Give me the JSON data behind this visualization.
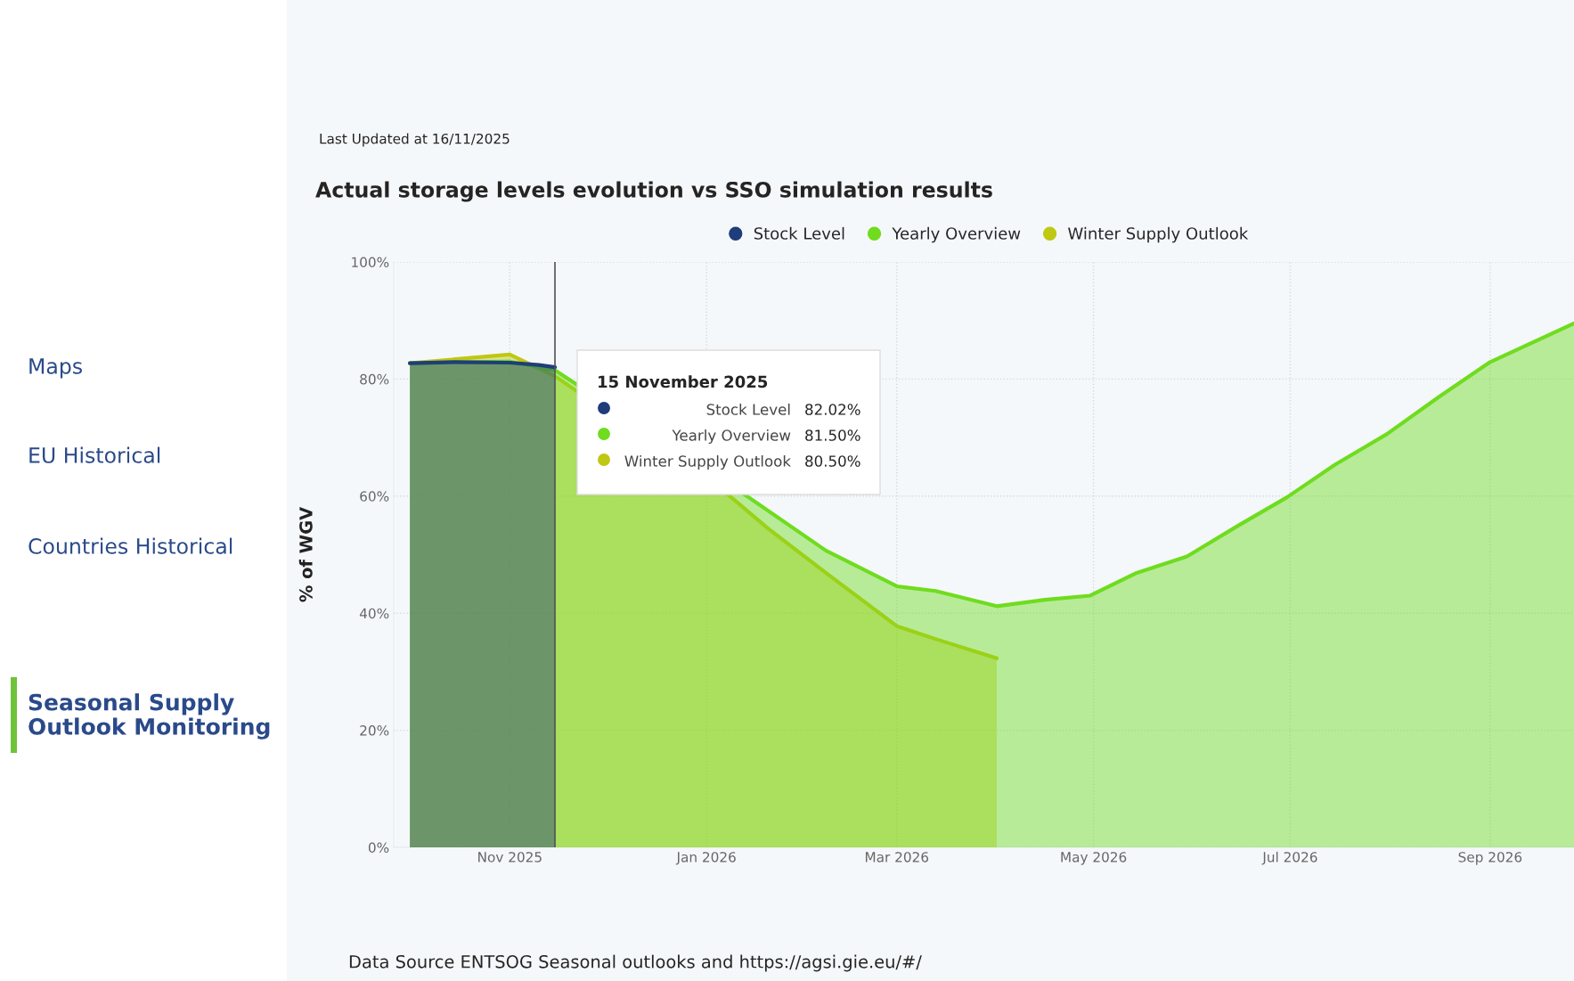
{
  "chart_data": {
    "type": "area",
    "title": "Actual storage levels evolution vs SSO simulation results",
    "ylabel": "% of WGV",
    "series": [
      {
        "name": "Stock Level",
        "color": "#1f3d7a",
        "x": [
          "2025-10-01",
          "2025-10-15",
          "2025-11-01",
          "2025-11-10",
          "2025-11-15"
        ],
        "values": [
          82.7,
          82.9,
          82.8,
          82.4,
          82.02
        ]
      },
      {
        "name": "Yearly Overview",
        "color": "#6fdc1f",
        "x": [
          "2025-10-01",
          "2025-11-01",
          "2025-11-15",
          "2026-01-14",
          "2026-02-07",
          "2026-03-01",
          "2026-03-13",
          "2026-04-01",
          "2026-04-16",
          "2026-04-30",
          "2026-05-14",
          "2026-05-30",
          "2026-06-15",
          "2026-06-30",
          "2026-07-15",
          "2026-07-31",
          "2026-08-16",
          "2026-09-01",
          "2026-09-27"
        ],
        "values": [
          82.7,
          83.0,
          81.5,
          59.8,
          50.7,
          44.6,
          43.8,
          41.2,
          42.3,
          43.0,
          46.8,
          49.7,
          55.0,
          59.8,
          65.4,
          70.6,
          76.9,
          82.9,
          89.5
        ]
      },
      {
        "name": "Winter Supply Outlook",
        "color": "#bfc812",
        "x": [
          "2025-10-01",
          "2025-11-01",
          "2025-11-15",
          "2026-01-08",
          "2026-01-20",
          "2026-02-07",
          "2026-03-01",
          "2026-03-13",
          "2026-04-01"
        ],
        "values": [
          82.7,
          84.2,
          80.5,
          60.1,
          54.5,
          46.9,
          37.8,
          35.6,
          32.3
        ]
      }
    ],
    "xlim": [
      "2025-09-26",
      "2026-09-27"
    ],
    "xticks": [
      {
        "value": "2025-11-01",
        "label": "Nov 2025"
      },
      {
        "value": "2026-01-01",
        "label": "Jan 2026"
      },
      {
        "value": "2026-03-01",
        "label": "Mar 2026"
      },
      {
        "value": "2026-05-01",
        "label": "May 2026"
      },
      {
        "value": "2026-07-01",
        "label": "Jul 2026"
      },
      {
        "value": "2026-09-01",
        "label": "Sep 2026"
      }
    ],
    "ylim": [
      0,
      100
    ],
    "yticks": [
      {
        "value": 0,
        "label": "0%"
      },
      {
        "value": 20,
        "label": "20%"
      },
      {
        "value": 40,
        "label": "40%"
      },
      {
        "value": 60,
        "label": "60%"
      },
      {
        "value": 80,
        "label": "80%"
      },
      {
        "value": 100,
        "label": "100%"
      }
    ],
    "grid": true,
    "legend": "top",
    "ref_lines": [
      {
        "axis": "x",
        "value": "2025-11-15",
        "color": "#555555"
      }
    ],
    "annotations": [
      "Last Updated at 16/11/2025",
      "15 November 2025",
      "Stock Level",
      "82.02%",
      "Yearly Overview",
      "81.50%",
      "Winter Supply Outlook",
      "80.50%",
      "Data Source ENTSOG Seasonal outlooks and https://agsi.gie.eu/#/",
      "Maps",
      "EU Historical",
      "Countries Historical",
      "Seasonal Supply\nOutlook Monitoring"
    ]
  }
}
